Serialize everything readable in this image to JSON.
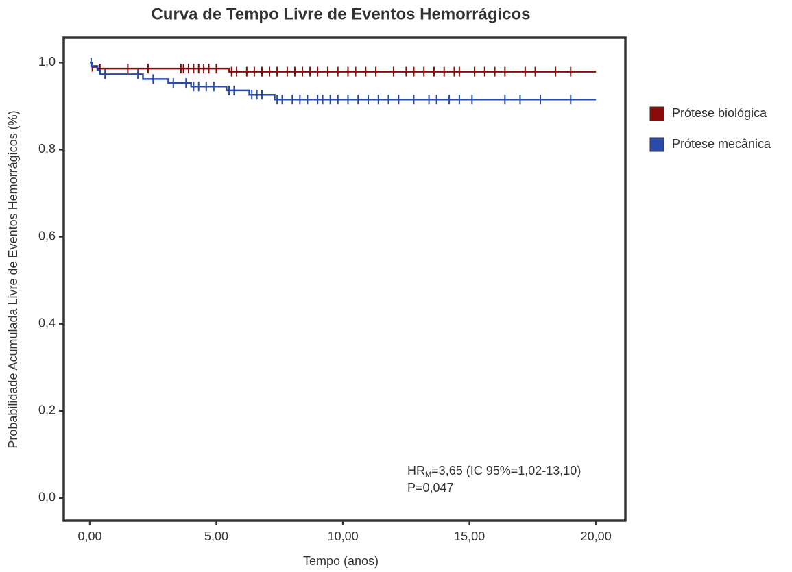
{
  "chart_data": {
    "type": "step",
    "title": "Curva de Tempo Livre de Eventos Hemorrágicos",
    "x_label": "Tempo (anos)",
    "y_label": "Probabilidade Acumulada Livre de Eventos Hemorrágicos (%)",
    "xlim": [
      -1.03,
      21.16
    ],
    "ylim": [
      -0.052,
      1.057
    ],
    "xticks": [
      {
        "value": 0,
        "label": "0,00"
      },
      {
        "value": 5,
        "label": "5,00"
      },
      {
        "value": 10,
        "label": "10,00"
      },
      {
        "value": 15,
        "label": "15,00"
      },
      {
        "value": 20,
        "label": "20,00"
      }
    ],
    "yticks": [
      {
        "value": 0,
        "label": "0,0"
      },
      {
        "value": 0.2,
        "label": "0,2"
      },
      {
        "value": 0.4,
        "label": "0,4"
      },
      {
        "value": 0.6,
        "label": "0,6"
      },
      {
        "value": 0.8,
        "label": "0,8"
      },
      {
        "value": 1,
        "label": "1,0"
      }
    ],
    "legend": "right",
    "series": [
      {
        "name": "Prótese biológica",
        "color": "#8b0a0a",
        "x": [
          0,
          0.1,
          0.3,
          5.5,
          20
        ],
        "values": [
          1,
          0.99,
          0.986,
          0.979,
          0.979
        ],
        "censor_x": [
          0.1,
          0.4,
          1.5,
          2.3,
          3.6,
          3.7,
          3.9,
          4.1,
          4.3,
          4.5,
          4.7,
          5.0,
          5.6,
          5.8,
          6.2,
          6.5,
          6.8,
          7.1,
          7.4,
          7.8,
          8.1,
          8.4,
          8.7,
          9.0,
          9.4,
          9.8,
          10.2,
          10.5,
          10.9,
          11.3,
          12.0,
          12.5,
          12.8,
          13.2,
          13.6,
          14.0,
          14.4,
          14.6,
          15.2,
          15.6,
          16.0,
          16.4,
          17.2,
          17.6,
          18.4,
          19.0
        ],
        "censor_values": [
          0.99,
          0.986,
          0.986,
          0.986,
          0.986,
          0.986,
          0.986,
          0.986,
          0.986,
          0.986,
          0.986,
          0.986,
          0.979,
          0.979,
          0.979,
          0.979,
          0.979,
          0.979,
          0.979,
          0.979,
          0.979,
          0.979,
          0.979,
          0.979,
          0.979,
          0.979,
          0.979,
          0.979,
          0.979,
          0.979,
          0.979,
          0.979,
          0.979,
          0.979,
          0.979,
          0.979,
          0.979,
          0.979,
          0.979,
          0.979,
          0.979,
          0.979,
          0.979,
          0.979,
          0.979,
          0.979
        ]
      },
      {
        "name": "Prótese mecânica",
        "color": "#2a4aa8",
        "x": [
          0,
          0.1,
          0.3,
          0.4,
          2.1,
          3.1,
          4.0,
          5.4,
          6.3,
          7.3,
          20
        ],
        "values": [
          1,
          0.992,
          0.983,
          0.973,
          0.962,
          0.953,
          0.945,
          0.936,
          0.926,
          0.915,
          0.915
        ],
        "censor_x": [
          0.05,
          0.6,
          1.9,
          2.5,
          3.3,
          3.8,
          4.1,
          4.3,
          4.6,
          4.9,
          5.5,
          5.7,
          6.4,
          6.6,
          6.8,
          7.4,
          7.6,
          8.0,
          8.3,
          8.6,
          9.0,
          9.2,
          9.5,
          9.8,
          10.2,
          10.6,
          11.0,
          11.4,
          11.8,
          12.2,
          12.8,
          13.4,
          13.7,
          14.2,
          14.6,
          15.1,
          16.4,
          17.0,
          17.8,
          19.0
        ],
        "censor_values": [
          1,
          0.973,
          0.973,
          0.962,
          0.953,
          0.953,
          0.945,
          0.945,
          0.945,
          0.945,
          0.936,
          0.936,
          0.926,
          0.926,
          0.926,
          0.915,
          0.915,
          0.915,
          0.915,
          0.915,
          0.915,
          0.915,
          0.915,
          0.915,
          0.915,
          0.915,
          0.915,
          0.915,
          0.915,
          0.915,
          0.915,
          0.915,
          0.915,
          0.915,
          0.915,
          0.915,
          0.915,
          0.915,
          0.915,
          0.915
        ]
      }
    ],
    "annotation": {
      "hr": "HR",
      "hr_sub": "M",
      "hr_text": "=3,65 (IC 95%=1,02-13,10)",
      "p_text": "P=0,047"
    }
  }
}
